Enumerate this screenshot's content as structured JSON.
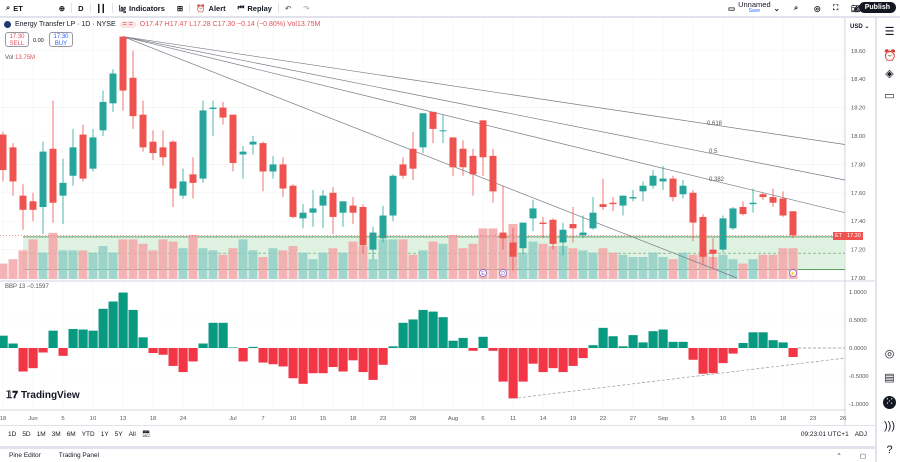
{
  "toolbar": {
    "symbol": "ET",
    "interval": "D",
    "indicators": "Indicators",
    "alert": "Alert",
    "replay": "Replay",
    "layout_name": "Unnamed",
    "layout_sub": "Save",
    "publish": "Publish"
  },
  "legend": {
    "title": "Energy Transfer LP · 1D · NYSE",
    "ohlc": "O17.47 H17.47 L17.28 C17.30 −0.14 (−0.80%) Vol13.75M",
    "sell_price": "17.30",
    "sell_label": "SELL",
    "spread": "0.00",
    "buy_price": "17.30",
    "buy_label": "BUY",
    "vol_label": "Vol",
    "vol_value": "13.75M"
  },
  "indicator": {
    "name": "BBP 13",
    "value": "−0.1597"
  },
  "price_axis": {
    "currency": "USD",
    "last_symbol": "ET",
    "last_price": "17.30",
    "ticks": [
      "18.60",
      "18.40",
      "18.20",
      "18.00",
      "17.80",
      "17.60",
      "17.40",
      "17.20",
      "17.00"
    ]
  },
  "indicator_axis": {
    "ticks": [
      "1.0000",
      "0.5000",
      "0.0000",
      "-0.5000",
      "-1.0000"
    ]
  },
  "timeframes": [
    "1D",
    "5D",
    "1M",
    "3M",
    "6M",
    "YTD",
    "1Y",
    "5Y",
    "All"
  ],
  "clock": "09:23:01 UTC+1",
  "adj": "ADJ",
  "bottom_tabs": [
    "Pine Editor",
    "Trading Panel"
  ],
  "brand": "TradingView",
  "events": [
    {
      "label": "E",
      "bar": 48
    },
    {
      "label": "D",
      "bar": 50
    },
    {
      "label": "⚡",
      "bar": 79
    }
  ],
  "fib_labels": [
    "0.618",
    "0.5",
    "0.382"
  ],
  "colors": {
    "up": "#26a69a",
    "down": "#ef5350",
    "vol_up": "#8fcfc6",
    "vol_down": "#f3a6a8",
    "zone": "#d8efd9",
    "zone_line": "#5a9f62",
    "bbp_up": "#089981",
    "bbp_down": "#f23645"
  },
  "chart_data": {
    "type": "candlestick",
    "symbol": "ET",
    "timeframe": "1D",
    "exchange": "NYSE",
    "ylim": [
      17.0,
      18.7
    ],
    "x_ticks": [
      {
        "label": "18",
        "bar": 0
      },
      {
        "label": "Jun",
        "bar": 3
      },
      {
        "label": "5",
        "bar": 6
      },
      {
        "label": "10",
        "bar": 9
      },
      {
        "label": "13",
        "bar": 12
      },
      {
        "label": "18",
        "bar": 15
      },
      {
        "label": "24",
        "bar": 18
      },
      {
        "label": "Jul",
        "bar": 23
      },
      {
        "label": "7",
        "bar": 26
      },
      {
        "label": "10",
        "bar": 29
      },
      {
        "label": "15",
        "bar": 32
      },
      {
        "label": "18",
        "bar": 35
      },
      {
        "label": "23",
        "bar": 38
      },
      {
        "label": "28",
        "bar": 41
      },
      {
        "label": "Aug",
        "bar": 45
      },
      {
        "label": "6",
        "bar": 48
      },
      {
        "label": "11",
        "bar": 51
      },
      {
        "label": "14",
        "bar": 54
      },
      {
        "label": "19",
        "bar": 57
      },
      {
        "label": "22",
        "bar": 60
      },
      {
        "label": "27",
        "bar": 63
      },
      {
        "label": "Sep",
        "bar": 66
      },
      {
        "label": "5",
        "bar": 69
      },
      {
        "label": "10",
        "bar": 72
      },
      {
        "label": "15",
        "bar": 75
      },
      {
        "label": "18",
        "bar": 78
      },
      {
        "label": "23",
        "bar": 81
      },
      {
        "label": "26",
        "bar": 84
      }
    ],
    "ohlc": [
      [
        18.01,
        18.03,
        17.68,
        17.76
      ],
      [
        17.92,
        17.95,
        17.58,
        17.68
      ],
      [
        17.58,
        17.66,
        17.34,
        17.48
      ],
      [
        17.54,
        17.6,
        17.4,
        17.48
      ],
      [
        17.5,
        17.96,
        17.31,
        17.89
      ],
      [
        17.91,
        18.25,
        17.39,
        17.53
      ],
      [
        17.58,
        17.84,
        17.38,
        17.67
      ],
      [
        17.72,
        18.05,
        17.65,
        17.92
      ],
      [
        18.01,
        18.08,
        17.68,
        17.7
      ],
      [
        17.77,
        18.05,
        17.75,
        17.99
      ],
      [
        18.04,
        18.32,
        18.0,
        18.24
      ],
      [
        18.23,
        18.47,
        18.17,
        18.44
      ],
      [
        18.7,
        18.7,
        18.18,
        18.32
      ],
      [
        18.41,
        18.6,
        18.05,
        18.14
      ],
      [
        18.15,
        18.25,
        17.89,
        17.92
      ],
      [
        17.96,
        18.04,
        17.83,
        17.88
      ],
      [
        17.92,
        18.04,
        17.79,
        17.85
      ],
      [
        17.96,
        17.97,
        17.5,
        17.63
      ],
      [
        17.58,
        17.77,
        17.56,
        17.68
      ],
      [
        17.73,
        17.85,
        17.56,
        17.67
      ],
      [
        17.7,
        18.25,
        17.67,
        18.18
      ],
      [
        18.19,
        18.25,
        18.0,
        18.2
      ],
      [
        18.2,
        18.24,
        18.08,
        18.13
      ],
      [
        18.15,
        18.15,
        17.75,
        17.81
      ],
      [
        17.87,
        17.93,
        17.7,
        17.89
      ],
      [
        17.94,
        18.0,
        17.87,
        17.96
      ],
      [
        17.95,
        17.96,
        17.61,
        17.75
      ],
      [
        17.75,
        17.86,
        17.7,
        17.8
      ],
      [
        17.8,
        17.85,
        17.57,
        17.63
      ],
      [
        17.65,
        17.66,
        17.42,
        17.43
      ],
      [
        17.42,
        17.52,
        17.35,
        17.46
      ],
      [
        17.46,
        17.62,
        17.36,
        17.49
      ],
      [
        17.51,
        17.62,
        17.35,
        17.58
      ],
      [
        17.6,
        17.64,
        17.31,
        17.43
      ],
      [
        17.46,
        17.54,
        17.36,
        17.54
      ],
      [
        17.51,
        17.57,
        17.38,
        17.46
      ],
      [
        17.5,
        17.52,
        17.17,
        17.23
      ],
      [
        17.2,
        17.36,
        17.13,
        17.32
      ],
      [
        17.28,
        17.51,
        17.25,
        17.44
      ],
      [
        17.44,
        17.73,
        17.4,
        17.72
      ],
      [
        17.8,
        17.85,
        17.7,
        17.72
      ],
      [
        17.91,
        18.03,
        17.69,
        17.77
      ],
      [
        17.92,
        18.16,
        17.88,
        18.16
      ],
      [
        18.17,
        18.17,
        17.95,
        18.05
      ],
      [
        18.04,
        18.15,
        17.95,
        18.04
      ],
      [
        17.99,
        17.99,
        17.72,
        17.78
      ],
      [
        17.91,
        17.97,
        17.72,
        17.78
      ],
      [
        17.86,
        17.91,
        17.58,
        17.73
      ],
      [
        18.11,
        18.11,
        17.72,
        17.85
      ],
      [
        17.86,
        17.91,
        17.53,
        17.61
      ],
      [
        17.32,
        17.65,
        17.2,
        17.28
      ],
      [
        17.25,
        17.35,
        17.05,
        17.15
      ],
      [
        17.21,
        17.39,
        17.17,
        17.39
      ],
      [
        17.42,
        17.55,
        17.33,
        17.49
      ],
      [
        17.39,
        17.43,
        17.28,
        17.38
      ],
      [
        17.41,
        17.42,
        17.2,
        17.24
      ],
      [
        17.25,
        17.39,
        17.16,
        17.34
      ],
      [
        17.38,
        17.5,
        17.25,
        17.35
      ],
      [
        17.3,
        17.44,
        17.28,
        17.32
      ],
      [
        17.35,
        17.57,
        17.34,
        17.46
      ],
      [
        17.52,
        17.7,
        17.48,
        17.5
      ],
      [
        17.53,
        17.57,
        17.47,
        17.52
      ],
      [
        17.51,
        17.58,
        17.44,
        17.58
      ],
      [
        17.56,
        17.62,
        17.54,
        17.57
      ],
      [
        17.61,
        17.68,
        17.54,
        17.65
      ],
      [
        17.65,
        17.76,
        17.63,
        17.72
      ],
      [
        17.68,
        17.79,
        17.62,
        17.7
      ],
      [
        17.7,
        17.72,
        17.54,
        17.57
      ],
      [
        17.59,
        17.69,
        17.56,
        17.65
      ],
      [
        17.6,
        17.62,
        17.26,
        17.39
      ],
      [
        17.43,
        17.45,
        17.1,
        17.15
      ],
      [
        17.2,
        17.28,
        17.07,
        17.17
      ],
      [
        17.2,
        17.44,
        17.18,
        17.42
      ],
      [
        17.35,
        17.5,
        17.34,
        17.49
      ],
      [
        17.5,
        17.54,
        17.44,
        17.45
      ],
      [
        17.52,
        17.63,
        17.46,
        17.53
      ],
      [
        17.59,
        17.6,
        17.55,
        17.57
      ],
      [
        17.57,
        17.63,
        17.5,
        17.53
      ],
      [
        17.56,
        17.61,
        17.43,
        17.44
      ],
      [
        17.47,
        17.47,
        17.28,
        17.3
      ]
    ],
    "volume_m": [
      7,
      9,
      13,
      18,
      12,
      21,
      13,
      13,
      13,
      12,
      15,
      12,
      18,
      18,
      16,
      13,
      18,
      17,
      14,
      20,
      14,
      13,
      11,
      14,
      18,
      13,
      10,
      14,
      13,
      15,
      12,
      9,
      12,
      14,
      12,
      17,
      15,
      9,
      18,
      18,
      18,
      11,
      13,
      17,
      16,
      20,
      14,
      16,
      23,
      23,
      19,
      25,
      12,
      17,
      16,
      15,
      15,
      14,
      13,
      12,
      14,
      12,
      11,
      10,
      10,
      12,
      10,
      9,
      12,
      11,
      12,
      10,
      11,
      9,
      7,
      9,
      11,
      11,
      14,
      14
    ],
    "zone": [
      17.06,
      17.29
    ],
    "fan": {
      "origin": {
        "bar": 12,
        "price": 18.7
      },
      "lines": [
        {
          "bar": 73.4,
          "price": 17.0
        },
        {
          "level": "0.382",
          "bar": 84.2,
          "price": 17.46
        },
        {
          "level": "0.5",
          "bar": 84.2,
          "price": 17.69
        },
        {
          "level": "0.618",
          "bar": 84.2,
          "price": 17.94
        }
      ]
    },
    "bbp": [
      0.22,
      0.08,
      -0.42,
      -0.36,
      -0.08,
      0.31,
      -0.14,
      0.34,
      0.33,
      0.31,
      0.7,
      0.83,
      0.99,
      0.68,
      0.19,
      -0.09,
      -0.12,
      -0.32,
      -0.43,
      -0.24,
      0.08,
      0.45,
      0.45,
      0.01,
      -0.24,
      0.02,
      -0.26,
      -0.29,
      -0.33,
      -0.54,
      -0.64,
      -0.45,
      -0.45,
      -0.34,
      -0.42,
      -0.22,
      -0.43,
      -0.57,
      -0.3,
      0.03,
      0.45,
      0.51,
      0.68,
      0.65,
      0.55,
      0.13,
      0.18,
      -0.05,
      0.2,
      -0.05,
      -0.6,
      -0.9,
      -0.6,
      -0.28,
      -0.43,
      -0.36,
      -0.43,
      -0.32,
      -0.18,
      0.05,
      0.36,
      0.21,
      0.03,
      0.23,
      0.1,
      0.3,
      0.33,
      0.11,
      0.11,
      -0.21,
      -0.46,
      -0.45,
      -0.27,
      -0.1,
      0.09,
      0.28,
      0.28,
      0.14,
      0.1,
      -0.16
    ],
    "bbp_ylim": [
      -1.0,
      1.0
    ],
    "bbp_trendline": [
      {
        "bar": 51,
        "value": -0.9
      },
      {
        "bar": 84.2,
        "value": -0.18
      }
    ]
  }
}
